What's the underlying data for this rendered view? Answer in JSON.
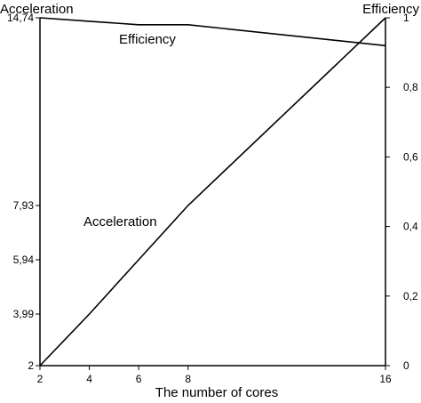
{
  "chart_data": {
    "type": "line",
    "xlabel": "The number of cores",
    "left_axis_title": "Acceleration",
    "right_axis_title": "Efficiency",
    "x_ticks": [
      "2",
      "4",
      "6",
      "8",
      "16"
    ],
    "x_tick_values": [
      2,
      4,
      6,
      8,
      16
    ],
    "left_ticks": [
      "2",
      "3,99",
      "5,94",
      "7,93",
      "14,74"
    ],
    "left_tick_values": [
      2,
      3.99,
      5.94,
      7.93,
      14.74
    ],
    "right_ticks": [
      "0",
      "0,2",
      "0,4",
      "0,6",
      "0,8",
      "1"
    ],
    "right_tick_values": [
      0,
      0.2,
      0.4,
      0.6,
      0.8,
      1
    ],
    "x": [
      2,
      4,
      6,
      8,
      16
    ],
    "series": [
      {
        "name": "Efficiency",
        "axis": "right",
        "values": [
          1.0,
          0.99,
          0.98,
          0.98,
          0.92
        ]
      },
      {
        "name": "Acceleration",
        "axis": "left",
        "values": [
          2,
          3.99,
          5.94,
          7.93,
          14.74
        ]
      }
    ],
    "grid": false
  }
}
